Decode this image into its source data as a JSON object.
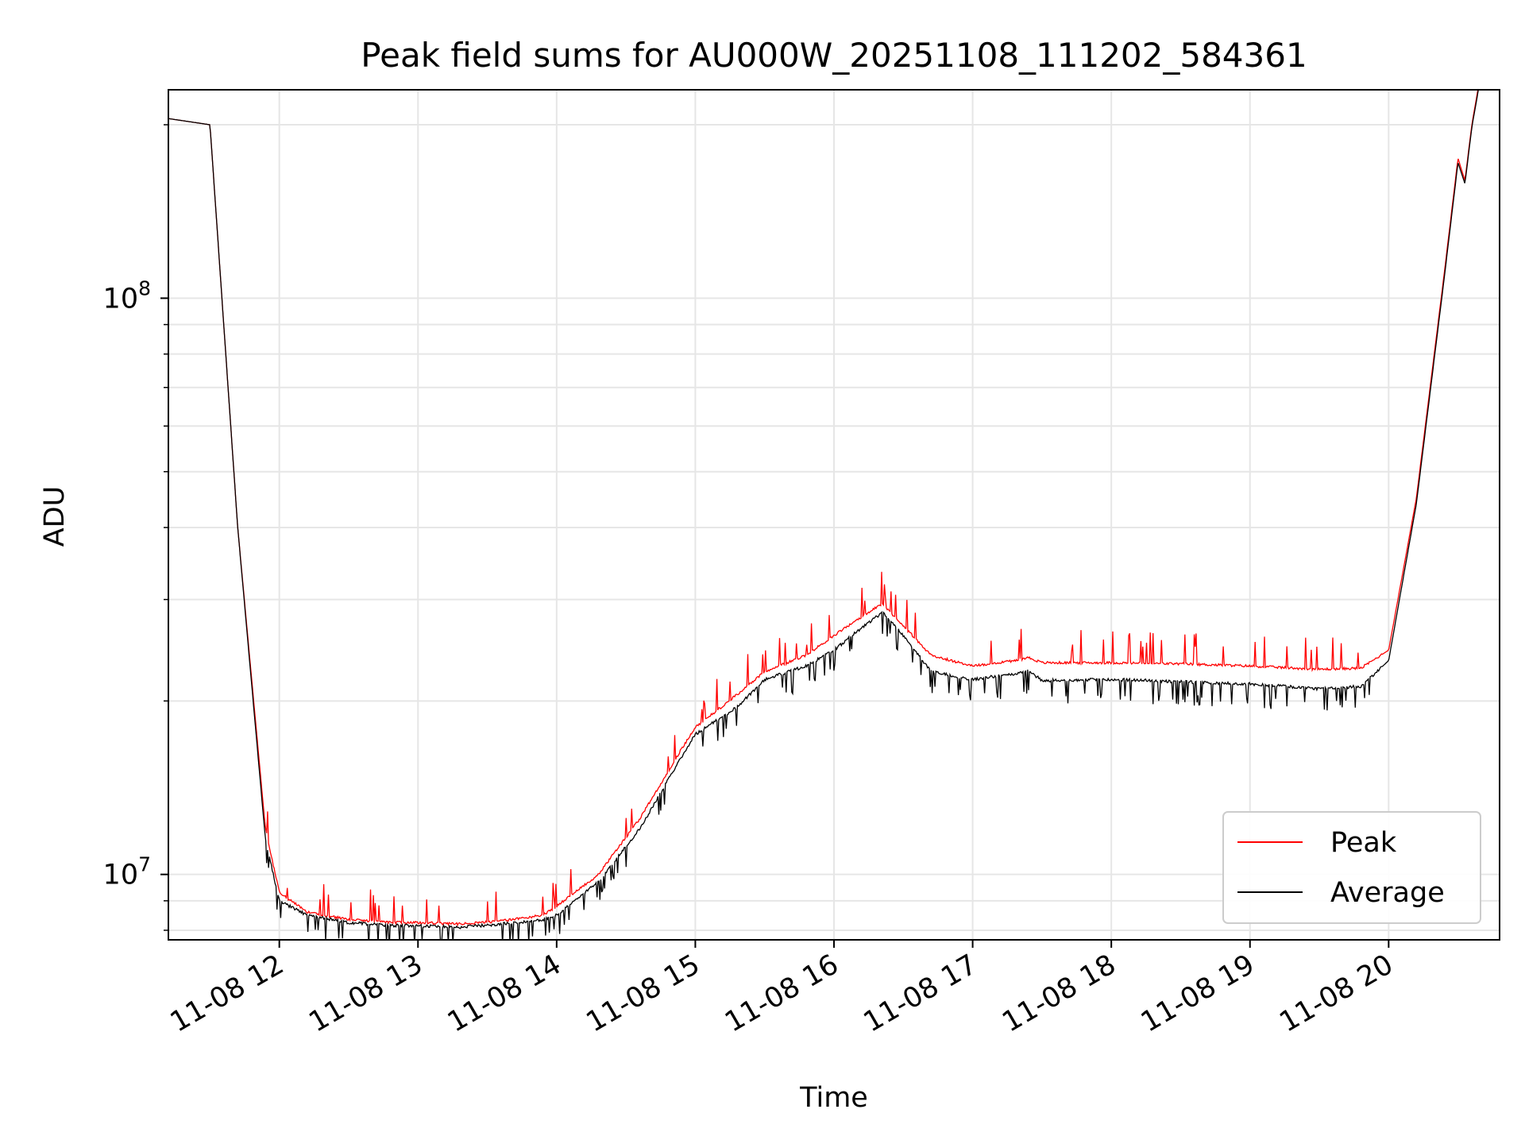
{
  "chart_data": {
    "type": "line",
    "title": "Peak field sums for AU000W_20251108_111202_584361",
    "xlabel": "Time",
    "ylabel": "ADU",
    "yscale": "log",
    "xlim": [
      11.2,
      20.8
    ],
    "ylim": [
      7700000,
      230000000
    ],
    "grid": true,
    "legend_position": "lower right",
    "x_ticks": [
      {
        "value": 12,
        "label": "11-08 12"
      },
      {
        "value": 13,
        "label": "11-08 13"
      },
      {
        "value": 14,
        "label": "11-08 14"
      },
      {
        "value": 15,
        "label": "11-08 15"
      },
      {
        "value": 16,
        "label": "11-08 16"
      },
      {
        "value": 17,
        "label": "11-08 17"
      },
      {
        "value": 18,
        "label": "11-08 18"
      },
      {
        "value": 19,
        "label": "11-08 19"
      },
      {
        "value": 20,
        "label": "11-08 20"
      }
    ],
    "y_major_ticks": [
      {
        "value": 10000000,
        "base": "10",
        "exp": "7"
      },
      {
        "value": 100000000,
        "base": "10",
        "exp": "8"
      }
    ],
    "y_minor_ticks": [
      8000000,
      9000000,
      20000000,
      30000000,
      40000000,
      50000000,
      60000000,
      70000000,
      80000000,
      90000000,
      200000000
    ],
    "series": [
      {
        "name": "Peak",
        "color": "#ff0000",
        "x": [
          11.2,
          11.5,
          11.7,
          11.9,
          12.0,
          12.2,
          12.5,
          12.8,
          13.0,
          13.3,
          13.6,
          13.9,
          14.0,
          14.3,
          14.6,
          14.9,
          15.0,
          15.3,
          15.5,
          15.8,
          16.0,
          16.2,
          16.35,
          16.5,
          16.7,
          17.0,
          17.3,
          17.4,
          17.5,
          18.0,
          18.5,
          19.0,
          19.5,
          19.8,
          20.0,
          20.2,
          20.4,
          20.5,
          20.55,
          20.6,
          20.65
        ],
        "y": [
          205000000,
          200000000,
          40000000,
          12000000,
          9300000,
          8600000,
          8350000,
          8250000,
          8250000,
          8200000,
          8300000,
          8500000,
          8800000,
          10000000,
          12500000,
          16500000,
          18000000,
          20500000,
          22500000,
          24000000,
          26000000,
          28000000,
          29500000,
          27000000,
          24000000,
          23000000,
          23500000,
          23800000,
          23300000,
          23300000,
          23200000,
          23000000,
          22700000,
          22800000,
          24500000,
          45000000,
          110000000,
          175000000,
          160000000,
          200000000,
          235000000
        ]
      },
      {
        "name": "Average",
        "color": "#000000",
        "x": [
          11.2,
          11.5,
          11.7,
          11.9,
          12.0,
          12.2,
          12.5,
          12.8,
          13.0,
          13.3,
          13.6,
          13.9,
          14.0,
          14.3,
          14.6,
          14.9,
          15.0,
          15.3,
          15.5,
          15.8,
          16.0,
          16.2,
          16.35,
          16.5,
          16.7,
          17.0,
          17.3,
          17.4,
          17.5,
          18.0,
          18.5,
          19.0,
          19.5,
          19.8,
          20.0,
          20.2,
          20.4,
          20.5,
          20.55,
          20.6,
          20.65
        ],
        "y": [
          205000000,
          200000000,
          40000000,
          11500000,
          9000000,
          8500000,
          8250000,
          8150000,
          8150000,
          8100000,
          8200000,
          8350000,
          8500000,
          9700000,
          12000000,
          16000000,
          17500000,
          19500000,
          21800000,
          23000000,
          24500000,
          26800000,
          28500000,
          26000000,
          22500000,
          21800000,
          22300000,
          22600000,
          21700000,
          21800000,
          21600000,
          21400000,
          21000000,
          21200000,
          23500000,
          44000000,
          108000000,
          172000000,
          158000000,
          198000000,
          232000000
        ]
      }
    ]
  }
}
